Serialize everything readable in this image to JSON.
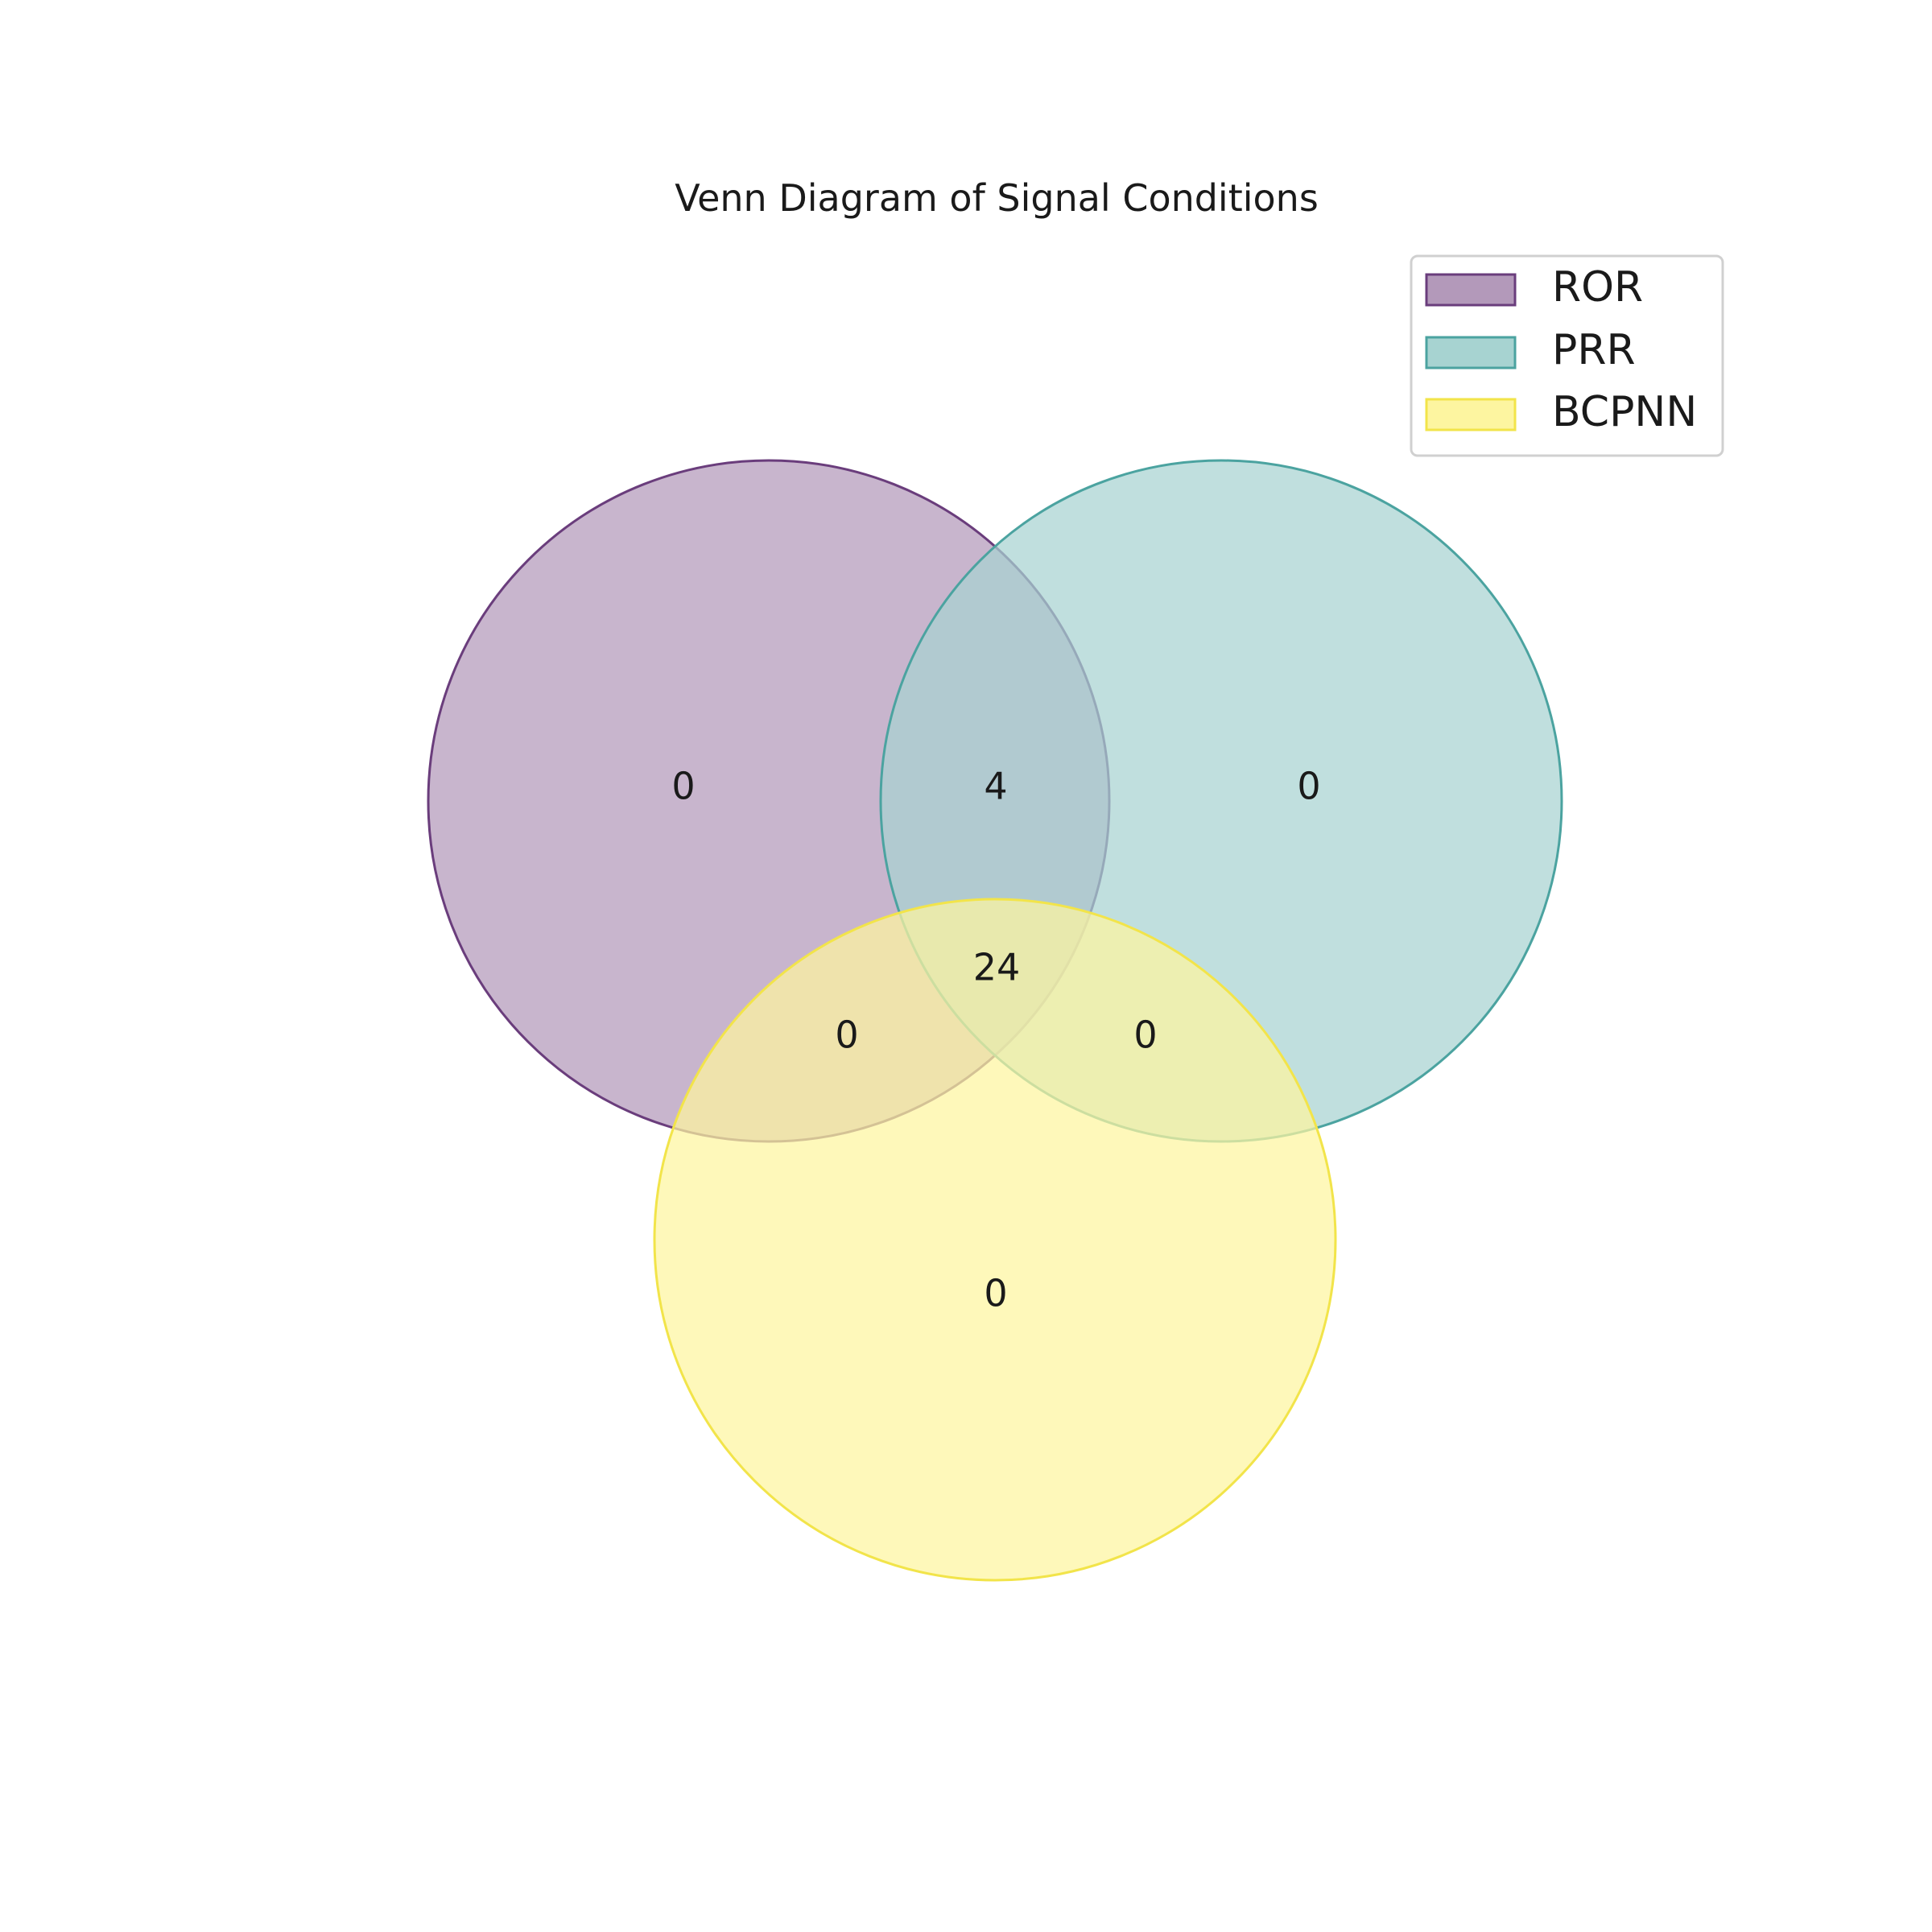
{
  "chart_data": {
    "type": "venn",
    "title": "Venn Diagram of Signal Conditions",
    "sets": [
      {
        "key": "ror",
        "name": "ROR",
        "fill": "#b399ba",
        "stroke": "#6a3d7c"
      },
      {
        "key": "prr",
        "name": "PRR",
        "fill": "#a7d3d1",
        "stroke": "#4ba3a0"
      },
      {
        "key": "bcpnn",
        "name": "BCPNN",
        "fill": "#fdf5a0",
        "stroke": "#f2e44a"
      }
    ],
    "regions": {
      "ror_only": "0",
      "prr_only": "0",
      "bcpnn_only": "0",
      "ror_prr": "4",
      "ror_bcpnn": "0",
      "prr_bcpnn": "0",
      "ror_prr_bcpnn": "24"
    },
    "legend_position": "top-right"
  }
}
